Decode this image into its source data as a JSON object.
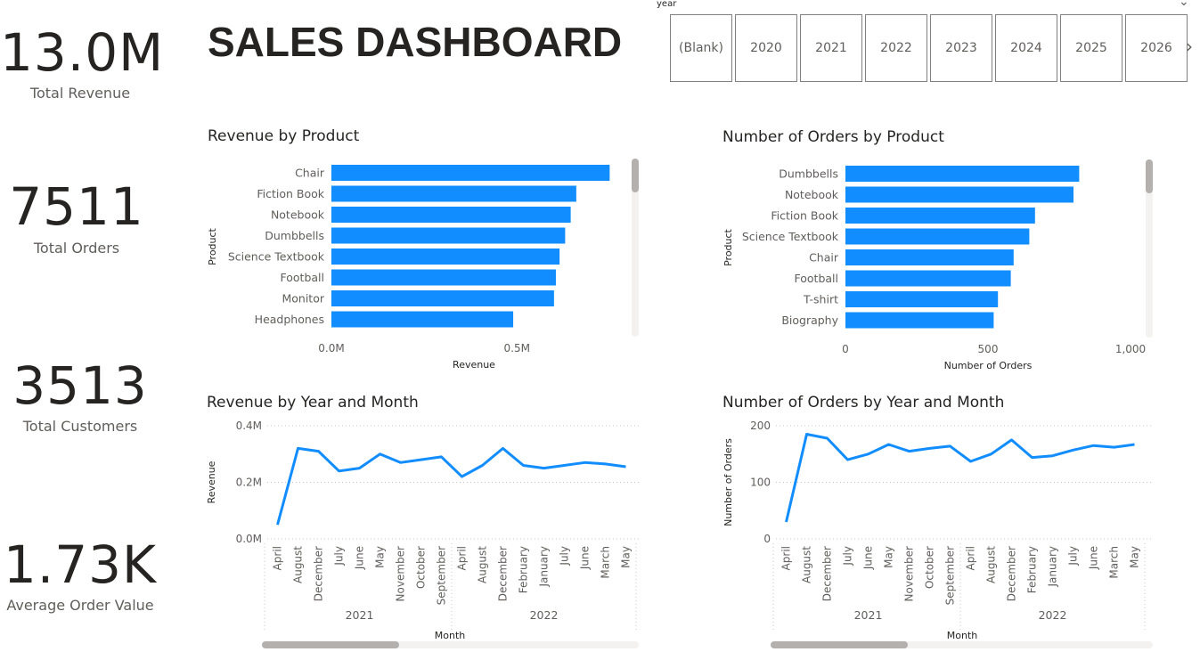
{
  "kpis": [
    {
      "value": "13.0M",
      "label": "Total Revenue"
    },
    {
      "value": "7511",
      "label": "Total Orders"
    },
    {
      "value": "3513",
      "label": "Total Customers"
    },
    {
      "value": "1.73K",
      "label": "Average Order Value"
    }
  ],
  "header": {
    "title": "SALES DASHBOARD"
  },
  "slicer": {
    "label": "year",
    "options": [
      "(Blank)",
      "2020",
      "2021",
      "2022",
      "2023",
      "2024",
      "2025",
      "2026"
    ]
  },
  "colors": {
    "bar": "#118DFF",
    "line": "#118DFF",
    "grid": "#c8c6c4",
    "scrollbar": "#c8c6c4",
    "scroll_track": "#f3f2f1"
  },
  "chart_data": [
    {
      "type": "bar",
      "orientation": "horizontal",
      "title": "Revenue by Product",
      "categories": [
        "Chair",
        "Fiction Book",
        "Notebook",
        "Dumbbells",
        "Science Textbook",
        "Football",
        "Monitor",
        "Headphones"
      ],
      "values": [
        0.75,
        0.66,
        0.645,
        0.63,
        0.615,
        0.605,
        0.6,
        0.49
      ],
      "xlabel": "Revenue",
      "ylabel": "Product",
      "xlim": [
        0,
        0.85
      ],
      "xticks": [
        0,
        0.5
      ],
      "xtick_labels": [
        "0.0M",
        "0.5M"
      ],
      "grid": false
    },
    {
      "type": "bar",
      "orientation": "horizontal",
      "title": "Number of Orders by Product",
      "categories": [
        "Dumbbells",
        "Notebook",
        "Fiction Book",
        "Science Textbook",
        "Chair",
        "Football",
        "T-shirt",
        "Biography"
      ],
      "values": [
        820,
        800,
        665,
        645,
        590,
        580,
        535,
        520
      ],
      "xlabel": "Number of Orders",
      "ylabel": "Product",
      "xlim": [
        0,
        1000
      ],
      "xticks": [
        0,
        500,
        1000
      ],
      "xtick_labels": [
        "0",
        "500",
        "1,000"
      ],
      "grid": false
    },
    {
      "type": "line",
      "title": "Revenue by Year and Month",
      "categories": [
        "April",
        "August",
        "December",
        "July",
        "June",
        "May",
        "November",
        "October",
        "September",
        "April",
        "August",
        "December",
        "February",
        "January",
        "July",
        "June",
        "March",
        "May"
      ],
      "groups": [
        {
          "label": "2021",
          "count": 9
        },
        {
          "label": "2022",
          "count": 9
        }
      ],
      "values": [
        0.05,
        0.32,
        0.31,
        0.24,
        0.25,
        0.3,
        0.27,
        0.28,
        0.29,
        0.22,
        0.26,
        0.32,
        0.26,
        0.25,
        0.26,
        0.27,
        0.265,
        0.255
      ],
      "xlabel": "Month",
      "ylabel": "Revenue",
      "ylim": [
        0,
        0.4
      ],
      "yticks": [
        0,
        0.2,
        0.4
      ],
      "ytick_labels": [
        "0.0M",
        "0.2M",
        "0.4M"
      ],
      "grid": true
    },
    {
      "type": "line",
      "title": "Number of Orders by Year and Month",
      "categories": [
        "April",
        "August",
        "December",
        "July",
        "June",
        "May",
        "November",
        "October",
        "September",
        "April",
        "August",
        "December",
        "February",
        "January",
        "July",
        "June",
        "March",
        "May"
      ],
      "groups": [
        {
          "label": "2021",
          "count": 9
        },
        {
          "label": "2022",
          "count": 9
        }
      ],
      "values": [
        30,
        185,
        178,
        140,
        150,
        167,
        155,
        160,
        164,
        137,
        150,
        175,
        144,
        147,
        157,
        165,
        162,
        167
      ],
      "xlabel": "Month",
      "ylabel": "Number of Orders",
      "ylim": [
        0,
        200
      ],
      "yticks": [
        0,
        100,
        200
      ],
      "ytick_labels": [
        "0",
        "100",
        "200"
      ],
      "grid": true
    }
  ]
}
